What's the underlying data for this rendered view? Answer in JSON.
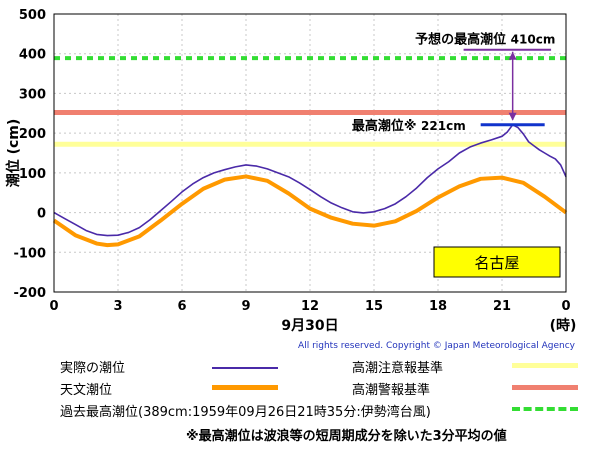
{
  "chart_data": {
    "type": "line",
    "ylabel": "潮位 (cm)",
    "ylim": [
      -200,
      500
    ],
    "y_ticks": [
      "500",
      "400",
      "300",
      "200",
      "100",
      "0",
      "-100",
      "-200"
    ],
    "xlim": [
      0,
      24
    ],
    "x_ticks": [
      "0",
      "3",
      "6",
      "9",
      "12",
      "15",
      "18",
      "21",
      "0"
    ],
    "x_unit": "(時)",
    "date_label": "9月30日",
    "grid": true,
    "station": "名古屋",
    "copyright": "All rights reserved. Copyright © Japan Meteorological Agency",
    "reference_lines": [
      {
        "name": "高潮注意報基準",
        "value": 172,
        "color": "#ffff99"
      },
      {
        "name": "高潮警報基準",
        "value": 252,
        "color": "#f08070"
      },
      {
        "name": "過去最高潮位(389cm:1959年09月26日21時35分:伊勢湾台風)",
        "value": 389,
        "color": "#33dd33"
      }
    ],
    "annotations": [
      {
        "label": "予想の最高潮位",
        "value_text": "410cm",
        "value": 410,
        "time": 21.5
      },
      {
        "label": "最高潮位",
        "mark": "※",
        "value_text": "221cm",
        "value": 221,
        "time": 21.5
      }
    ],
    "series": [
      {
        "name": "実際の潮位",
        "color": "#4a2aa8",
        "x": [
          0,
          0.5,
          1,
          1.5,
          2,
          2.5,
          3,
          3.5,
          4,
          4.5,
          5,
          5.5,
          6,
          6.5,
          7,
          7.5,
          8,
          8.5,
          9,
          9.5,
          10,
          10.5,
          11,
          11.5,
          12,
          12.5,
          13,
          13.5,
          14,
          14.5,
          15,
          15.5,
          16,
          16.5,
          17,
          17.5,
          18,
          18.5,
          19,
          19.5,
          20,
          20.5,
          21,
          21.25,
          21.5,
          21.75,
          22,
          22.25,
          22.5,
          22.75,
          23,
          23.25,
          23.5,
          23.75,
          24
        ],
        "values": [
          0,
          -15,
          -30,
          -45,
          -55,
          -58,
          -57,
          -50,
          -38,
          -18,
          5,
          28,
          52,
          72,
          88,
          100,
          108,
          115,
          120,
          117,
          110,
          100,
          90,
          75,
          58,
          40,
          24,
          12,
          2,
          -1,
          2,
          10,
          22,
          40,
          62,
          88,
          110,
          128,
          150,
          165,
          175,
          183,
          192,
          203,
          221,
          214,
          198,
          178,
          168,
          158,
          150,
          142,
          135,
          120,
          90
        ]
      },
      {
        "name": "天文潮位",
        "color": "#ff9900",
        "x": [
          0,
          1,
          2,
          2.5,
          3,
          4,
          5,
          6,
          7,
          8,
          9,
          10,
          11,
          12,
          13,
          14,
          15,
          16,
          17,
          18,
          19,
          20,
          21,
          22,
          23,
          24
        ],
        "values": [
          -20,
          -57,
          -78,
          -82,
          -80,
          -60,
          -20,
          22,
          60,
          83,
          91,
          80,
          48,
          10,
          -13,
          -28,
          -33,
          -22,
          4,
          38,
          66,
          85,
          88,
          75,
          40,
          0
        ]
      }
    ]
  }
}
